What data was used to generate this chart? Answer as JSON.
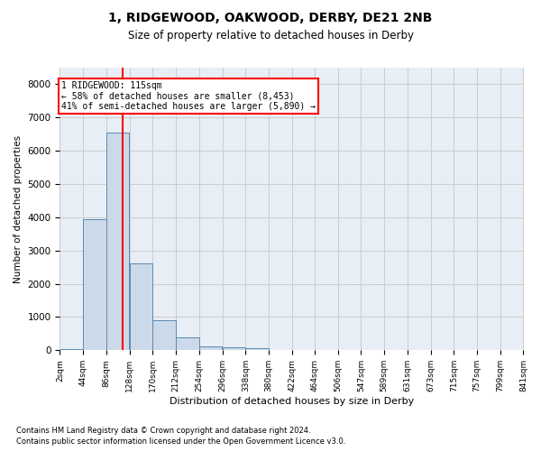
{
  "title": "1, RIDGEWOOD, OAKWOOD, DERBY, DE21 2NB",
  "subtitle": "Size of property relative to detached houses in Derby",
  "xlabel": "Distribution of detached houses by size in Derby",
  "ylabel": "Number of detached properties",
  "footnote1": "Contains HM Land Registry data © Crown copyright and database right 2024.",
  "footnote2": "Contains public sector information licensed under the Open Government Licence v3.0.",
  "annotation_line1": "1 RIDGEWOOD: 115sqm",
  "annotation_line2": "← 58% of detached houses are smaller (8,453)",
  "annotation_line3": "41% of semi-detached houses are larger (5,890) →",
  "bar_color": "#ccd9e8",
  "bar_edge_color": "#5b8ab5",
  "red_line_x": 115,
  "bins_left": [
    2,
    44,
    86,
    128,
    170,
    212,
    254,
    296,
    338,
    380,
    422,
    464,
    506,
    547,
    589,
    631,
    673,
    715,
    757,
    799
  ],
  "bin_width": 42,
  "bar_heights": [
    50,
    3950,
    6550,
    2600,
    900,
    380,
    120,
    100,
    70,
    10,
    0,
    0,
    0,
    0,
    0,
    0,
    0,
    0,
    0,
    0
  ],
  "ylim": [
    0,
    8500
  ],
  "yticks": [
    0,
    1000,
    2000,
    3000,
    4000,
    5000,
    6000,
    7000,
    8000
  ],
  "xlim": [
    2,
    841
  ],
  "xtick_labels": [
    "2sqm",
    "44sqm",
    "86sqm",
    "128sqm",
    "170sqm",
    "212sqm",
    "254sqm",
    "296sqm",
    "338sqm",
    "380sqm",
    "422sqm",
    "464sqm",
    "506sqm",
    "547sqm",
    "589sqm",
    "631sqm",
    "673sqm",
    "715sqm",
    "757sqm",
    "799sqm",
    "841sqm"
  ],
  "xtick_positions": [
    2,
    44,
    86,
    128,
    170,
    212,
    254,
    296,
    338,
    380,
    422,
    464,
    506,
    547,
    589,
    631,
    673,
    715,
    757,
    799,
    841
  ],
  "grid_color": "#cccccc",
  "background_color": "#e8eef5"
}
